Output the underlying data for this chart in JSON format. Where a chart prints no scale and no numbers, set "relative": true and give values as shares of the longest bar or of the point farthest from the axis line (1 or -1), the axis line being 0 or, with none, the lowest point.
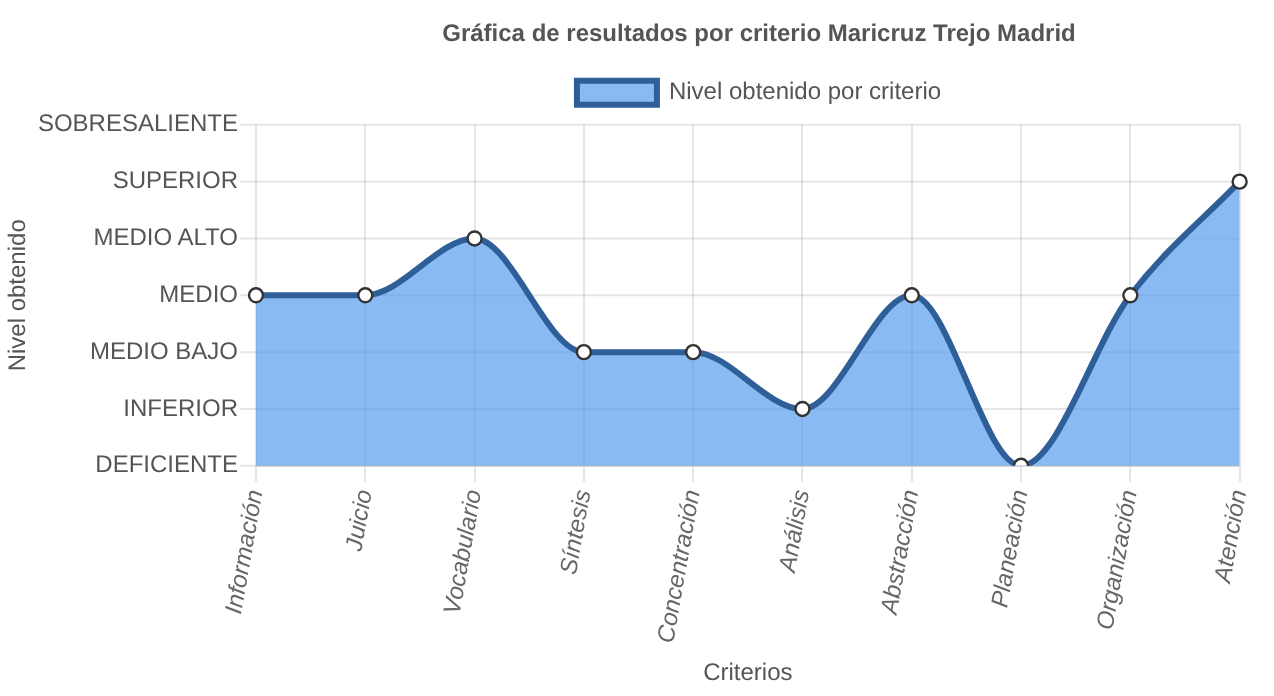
{
  "chart_data": {
    "type": "area",
    "title": "Gráfica de resultados por criterio Maricruz Trejo Madrid",
    "xlabel": "Criterios",
    "annotations": [
      "Nivel obtenido"
    ],
    "categories": [
      "Información",
      "Juicio",
      "Vocabulario",
      "Síntesis",
      "Concentración",
      "Análisis",
      "Abstracción",
      "Planeación",
      "Organización",
      "Atención"
    ],
    "series": [
      {
        "name": "Nivel obtenido por criterio",
        "color": "#2f5f98",
        "values": [
          0.6,
          0.6,
          0.8,
          0.4,
          0.4,
          0.2,
          0.6,
          0,
          0.6,
          1
        ]
      }
    ],
    "relative": true,
    "ref_lines": [
      {
        "axis": "y",
        "value": 0,
        "label": "DEFICIENTE"
      },
      {
        "axis": "y",
        "value": 0.2,
        "label": "INFERIOR"
      },
      {
        "axis": "y",
        "value": 0.4,
        "label": "MEDIO BAJO"
      },
      {
        "axis": "y",
        "value": 0.6,
        "label": "MEDIO"
      },
      {
        "axis": "y",
        "value": 0.8,
        "label": "MEDIO ALTO"
      },
      {
        "axis": "y",
        "value": 1,
        "label": "SUPERIOR"
      },
      {
        "axis": "y",
        "value": 1.2,
        "label": "SOBRESALIENTE"
      }
    ],
    "grid": "x",
    "legend": "top",
    "marker": "circle"
  }
}
